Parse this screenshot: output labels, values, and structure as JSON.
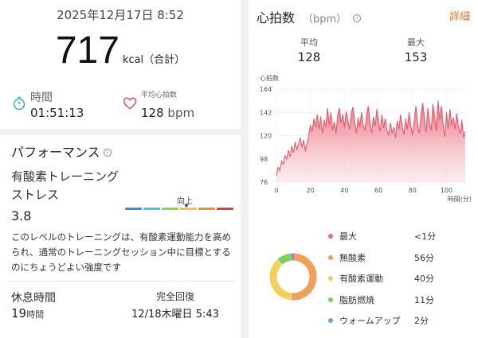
{
  "summary": {
    "datetime": "2025年12月17日 8:52",
    "calories_value": "717",
    "calories_unit": "kcal（合計）",
    "time_label": "時間",
    "time_value": "01:51:13",
    "avg_hr_label": "平均心拍数",
    "avg_hr_value": "128",
    "avg_hr_unit": "bpm"
  },
  "performance": {
    "title": "パフォーマンス",
    "info_icon": "info-icon",
    "label_line1": "有酸素トレーニング",
    "label_line2": "ストレス",
    "value": "3.8",
    "gauge_label": "向上",
    "gauge_fraction": 0.52,
    "gauge_colors": [
      "#3a8ee6",
      "#44c7d8",
      "#8fd14a",
      "#f2c23c",
      "#f08a35",
      "#e23b3b"
    ],
    "description": "このレベルのトレーニングは、有酸素運動能力を高められ、通常のトレーニングセッション中に目標とするのにちょうどよい強度です"
  },
  "recovery": {
    "rest_label": "休息時間",
    "rest_value": "19",
    "rest_unit": "時間",
    "full_label": "完全回復",
    "full_value": "12/18木曜日 5:43"
  },
  "heart_rate": {
    "title": "心拍数",
    "unit": "（bpm）",
    "info_icon": "info-icon",
    "detail_link": "詳細",
    "avg_label": "平均",
    "avg_value": "128",
    "max_label": "最大",
    "max_value": "153",
    "accent_color": "#e85b6e"
  },
  "chart_data": {
    "type": "area",
    "title": "",
    "ylabel": "心拍数",
    "xlabel": "時間(分)",
    "ylim": [
      76,
      164
    ],
    "xlim": [
      0,
      111
    ],
    "y_ticks": [
      "76",
      "98",
      "120",
      "142",
      "164"
    ],
    "x_ticks": [
      "0",
      "20",
      "40",
      "60",
      "80",
      "100"
    ],
    "grid": true,
    "series": [
      {
        "x": [
          0,
          1,
          2,
          3,
          4,
          5,
          6,
          7,
          8,
          9,
          10,
          11,
          12,
          13,
          14,
          15,
          16,
          17,
          18,
          19,
          20,
          21,
          22,
          23,
          24,
          25,
          26,
          27,
          28,
          29,
          30,
          31,
          32,
          33,
          34,
          35,
          36,
          37,
          38,
          39,
          40,
          41,
          42,
          43,
          44,
          45,
          46,
          47,
          48,
          49,
          50,
          51,
          52,
          53,
          54,
          55,
          56,
          57,
          58,
          59,
          60,
          61,
          62,
          63,
          64,
          65,
          66,
          67,
          68,
          69,
          70,
          71,
          72,
          73,
          74,
          75,
          76,
          77,
          78,
          79,
          80,
          81,
          82,
          83,
          84,
          85,
          86,
          87,
          88,
          89,
          90,
          91,
          92,
          93,
          94,
          95,
          96,
          97,
          98,
          99,
          100,
          101,
          102,
          103,
          104,
          105,
          106,
          107,
          108,
          109,
          110,
          111
        ],
        "values": [
          82,
          90,
          87,
          96,
          93,
          101,
          98,
          106,
          100,
          110,
          104,
          114,
          107,
          112,
          118,
          109,
          116,
          105,
          113,
          120,
          130,
          124,
          136,
          128,
          140,
          126,
          138,
          122,
          135,
          128,
          146,
          130,
          142,
          125,
          133,
          122,
          139,
          146,
          132,
          140,
          128,
          143,
          134,
          126,
          141,
          147,
          133,
          122,
          137,
          128,
          142,
          130,
          125,
          140,
          148,
          132,
          122,
          138,
          129,
          145,
          133,
          124,
          140,
          127,
          136,
          125,
          120,
          132,
          122,
          128,
          118,
          134,
          126,
          140,
          128,
          121,
          136,
          126,
          142,
          129,
          120,
          134,
          148,
          130,
          122,
          140,
          151,
          136,
          123,
          146,
          132,
          125,
          150,
          138,
          124,
          153,
          135,
          148,
          130,
          119,
          142,
          127,
          145,
          130,
          137,
          126,
          141,
          128,
          122,
          135,
          118,
          124
        ]
      }
    ]
  },
  "zones": [
    {
      "name": "最大",
      "value": "<1分",
      "minutes": 0.5,
      "color": "#e96b75"
    },
    {
      "name": "無酸素",
      "value": "56分",
      "minutes": 56,
      "color": "#f0a05a"
    },
    {
      "name": "有酸素運動",
      "value": "40分",
      "minutes": 40,
      "color": "#f2d15a"
    },
    {
      "name": "脂肪燃焼",
      "value": "11分",
      "minutes": 11,
      "color": "#7fcc5a"
    },
    {
      "name": "ウォームアップ",
      "value": "2分",
      "minutes": 2,
      "color": "#5aa9e8"
    }
  ]
}
